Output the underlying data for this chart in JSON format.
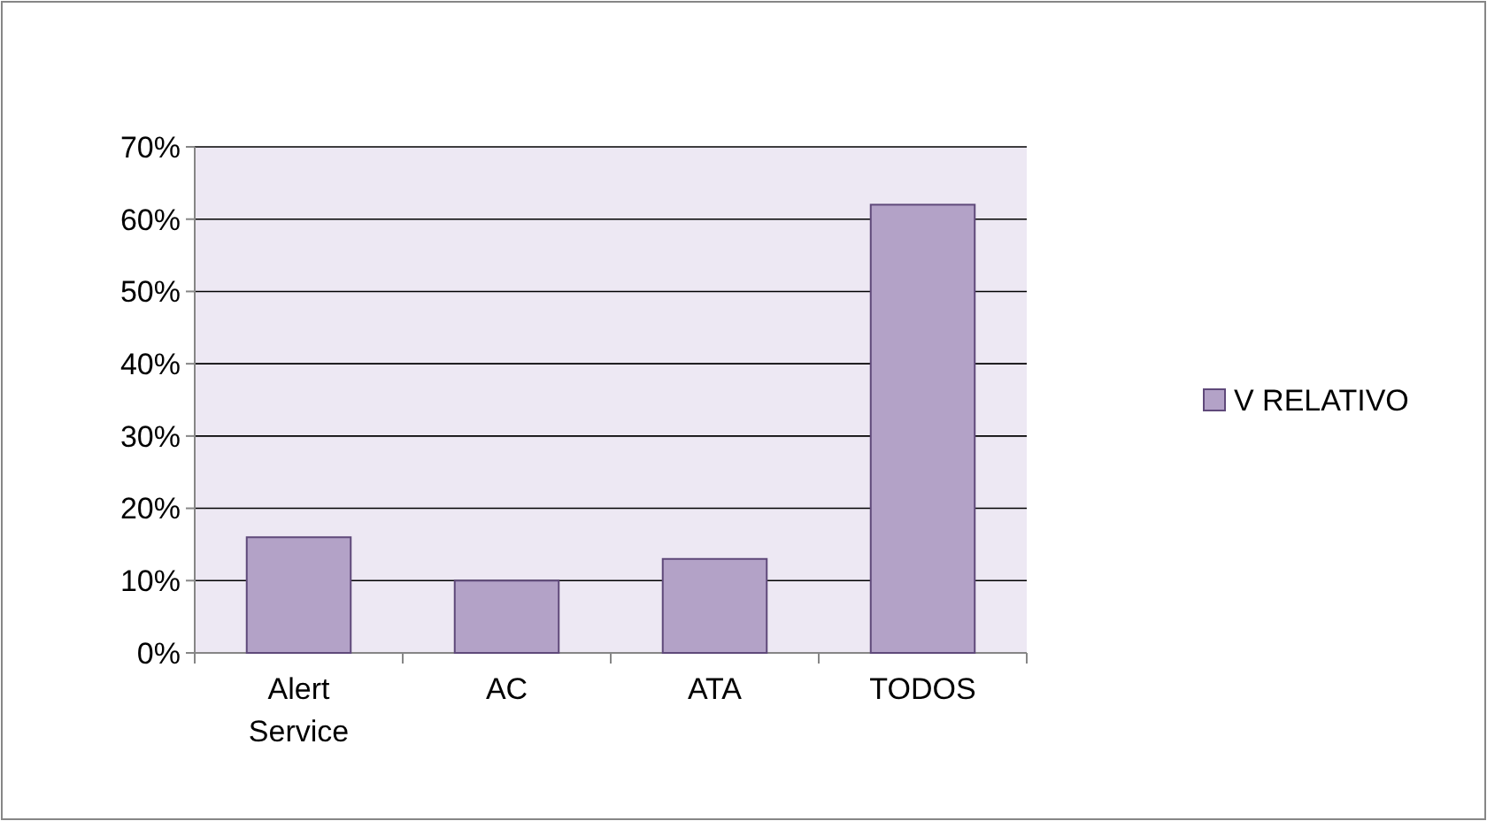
{
  "chart_data": {
    "type": "bar",
    "categories": [
      "Alert Service",
      "AC",
      "ATA",
      "TODOS"
    ],
    "series": [
      {
        "name": "V RELATIVO",
        "color": "#b3a2c7",
        "values": [
          16,
          10,
          13,
          62
        ]
      }
    ],
    "ylim": [
      0,
      70
    ],
    "yticks": [
      {
        "value": 0,
        "label": "0%"
      },
      {
        "value": 10,
        "label": "10%"
      },
      {
        "value": 20,
        "label": "20%"
      },
      {
        "value": 30,
        "label": "30%"
      },
      {
        "value": 40,
        "label": "40%"
      },
      {
        "value": 50,
        "label": "50%"
      },
      {
        "value": 60,
        "label": "60%"
      },
      {
        "value": 70,
        "label": "70%"
      }
    ],
    "grid": "y",
    "legend": "right"
  }
}
